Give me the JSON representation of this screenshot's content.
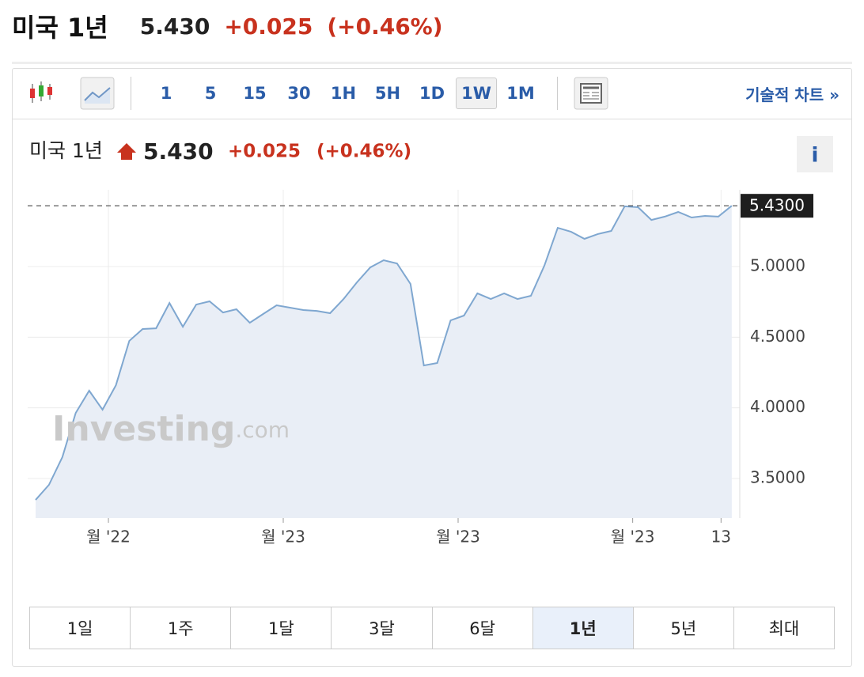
{
  "header": {
    "title": "미국 1년",
    "price": "5.430",
    "change": "+0.025",
    "change_pct": "(+0.46%)"
  },
  "toolbar": {
    "intervals": [
      "1",
      "5",
      "15",
      "30",
      "1H",
      "5H",
      "1D",
      "1W",
      "1M"
    ],
    "selected_interval": "1W",
    "technical_link": "기술적 차트 »"
  },
  "chart_data": {
    "type": "line",
    "title": "미국 1년",
    "price": "5.430",
    "change": "+0.025",
    "change_pct": "(+0.46%)",
    "info": "i",
    "watermark": "Investing",
    "watermark_suffix": ".com",
    "x": [
      0,
      1,
      2,
      3,
      4,
      5,
      6,
      7,
      8,
      9,
      10,
      11,
      12,
      13,
      14,
      15,
      16,
      17,
      18,
      19,
      20,
      21,
      22,
      23,
      24,
      25,
      26,
      27,
      28,
      29,
      30,
      31,
      32,
      33,
      34,
      35,
      36,
      37,
      38,
      39,
      40,
      41,
      42,
      43,
      44,
      45,
      46,
      47,
      48,
      49,
      50,
      51,
      52
    ],
    "series": [
      {
        "color": "#7fa7d0",
        "values": [
          3.348,
          3.455,
          3.651,
          3.964,
          4.121,
          3.987,
          4.16,
          4.474,
          4.558,
          4.563,
          4.742,
          4.574,
          4.731,
          4.754,
          4.675,
          4.698,
          4.602,
          4.664,
          4.726,
          4.709,
          4.692,
          4.686,
          4.67,
          4.77,
          4.888,
          4.994,
          5.045,
          5.022,
          4.877,
          4.3,
          4.317,
          4.619,
          4.653,
          4.81,
          4.77,
          4.81,
          4.77,
          4.793,
          5.006,
          5.274,
          5.246,
          5.196,
          5.23,
          5.252,
          5.426,
          5.42,
          5.33,
          5.353,
          5.386,
          5.347,
          5.358,
          5.353,
          5.43
        ]
      }
    ],
    "current": {
      "value": 5.43,
      "label": "5.4300"
    },
    "xlim": [
      -0.59,
      52.6
    ],
    "ylim": [
      3.22,
      5.543
    ],
    "xticks": [
      {
        "value": 5.44,
        "label": "월 '22"
      },
      {
        "value": 18.5,
        "label": "월 '23"
      },
      {
        "value": 31.56,
        "label": "월 '23"
      },
      {
        "value": 44.6,
        "label": "월 '23"
      },
      {
        "value": 51.2,
        "label": "13"
      }
    ],
    "yticks": [
      {
        "value": 3.5,
        "label": "3.5000"
      },
      {
        "value": 4,
        "label": "4.0000"
      },
      {
        "value": 4.5,
        "label": "4.5000"
      },
      {
        "value": 5,
        "label": "5.0000"
      }
    ],
    "grid": true,
    "area_color": "#e9eef6"
  },
  "ranges": {
    "buttons": [
      "1일",
      "1주",
      "1달",
      "3달",
      "6달",
      "1년",
      "5년",
      "최대"
    ],
    "selected": "1년"
  }
}
